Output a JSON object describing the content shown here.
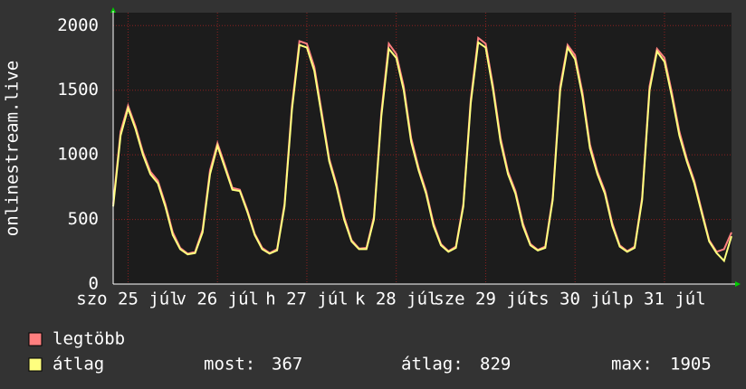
{
  "chart_data": {
    "type": "line",
    "ylabel": "onlinestream.live",
    "x": [
      0,
      2,
      4,
      6,
      8,
      10,
      12,
      14,
      16,
      18,
      20,
      22,
      24,
      26,
      28,
      30,
      32,
      34,
      36,
      38,
      40,
      42,
      44,
      46,
      48,
      50,
      52,
      54,
      56,
      58,
      60,
      62,
      64,
      66,
      68,
      70,
      72,
      74,
      76,
      78,
      80,
      82,
      84,
      86,
      88,
      90,
      92,
      94,
      96,
      98,
      100,
      102,
      104,
      106,
      108,
      110,
      112,
      114,
      116,
      118,
      120,
      122,
      124,
      126,
      128,
      130,
      132,
      134,
      136,
      138,
      140,
      142,
      144,
      146,
      148,
      150,
      152,
      154,
      156,
      158,
      160,
      162,
      164,
      166
    ],
    "series": [
      {
        "name": "legtöbb",
        "color": "#ff7f7f",
        "values": [
          620,
          1180,
          1380,
          1220,
          1020,
          870,
          800,
          620,
          400,
          280,
          235,
          250,
          420,
          880,
          1090,
          920,
          745,
          730,
          575,
          390,
          280,
          240,
          270,
          620,
          1380,
          1880,
          1860,
          1680,
          1330,
          970,
          770,
          520,
          340,
          275,
          280,
          520,
          1330,
          1860,
          1780,
          1530,
          1130,
          900,
          720,
          470,
          310,
          255,
          290,
          620,
          1430,
          1905,
          1860,
          1530,
          1130,
          870,
          720,
          470,
          310,
          265,
          290,
          670,
          1530,
          1850,
          1770,
          1480,
          1080,
          870,
          720,
          470,
          300,
          255,
          290,
          670,
          1530,
          1820,
          1750,
          1480,
          1180,
          970,
          800,
          570,
          340,
          250,
          270,
          400
        ]
      },
      {
        "name": "átlag",
        "color": "#ffff7f",
        "values": [
          600,
          1150,
          1360,
          1200,
          1000,
          850,
          780,
          600,
          380,
          270,
          230,
          240,
          400,
          850,
          1070,
          900,
          730,
          720,
          560,
          380,
          270,
          235,
          260,
          600,
          1350,
          1850,
          1830,
          1650,
          1300,
          950,
          750,
          500,
          330,
          270,
          270,
          500,
          1300,
          1820,
          1750,
          1500,
          1100,
          880,
          700,
          450,
          300,
          250,
          280,
          600,
          1400,
          1870,
          1830,
          1500,
          1100,
          850,
          700,
          450,
          300,
          260,
          280,
          650,
          1500,
          1830,
          1740,
          1450,
          1050,
          850,
          700,
          450,
          290,
          250,
          280,
          650,
          1500,
          1800,
          1720,
          1450,
          1150,
          950,
          780,
          550,
          330,
          240,
          180,
          370
        ]
      }
    ],
    "xlim": [
      0,
      166
    ],
    "xticks": [
      {
        "value": 4,
        "label": "szo 25 júl"
      },
      {
        "value": 28,
        "label": "v 26 júl"
      },
      {
        "value": 52,
        "label": "h 27 júl"
      },
      {
        "value": 76,
        "label": "k 28 júl"
      },
      {
        "value": 100,
        "label": "sze 29 júl"
      },
      {
        "value": 124,
        "label": "cs 30 júl"
      },
      {
        "value": 148,
        "label": "p 31 júl"
      }
    ],
    "ylim": [
      0,
      2100
    ],
    "yticks": [
      0,
      500,
      1000,
      1500,
      2000
    ],
    "grid": true,
    "stats": [
      {
        "label": "most:",
        "value": 367
      },
      {
        "label": "átlag:",
        "value": 829
      },
      {
        "label": "max:",
        "value": 1905
      }
    ]
  }
}
